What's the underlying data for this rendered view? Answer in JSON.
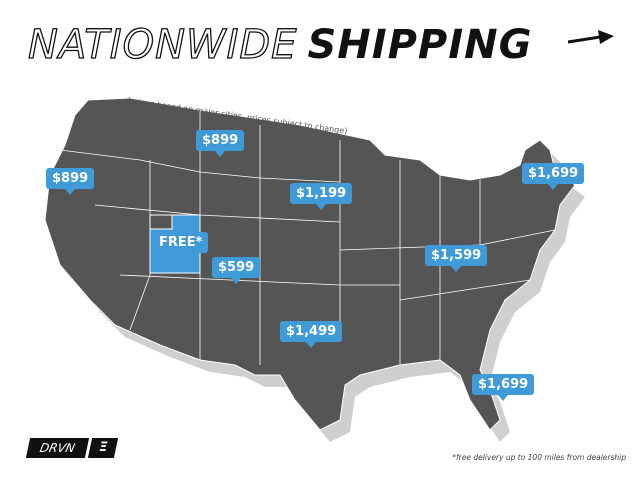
{
  "title": {
    "part1": "NATIONWIDE",
    "part2": "SHIPPING",
    "arrow_icon": "arrow-right-icon"
  },
  "note": "(prices based on major cities, prices subject to change)",
  "colors": {
    "map": "#555555",
    "shadow": "#cfcfcf",
    "highlight": "#3f9ad8",
    "text": "#111111"
  },
  "prices": [
    {
      "region": "Pacific Northwest",
      "label": "$899"
    },
    {
      "region": "Montana",
      "label": "$899"
    },
    {
      "region": "Utah",
      "label": "FREE*"
    },
    {
      "region": "Colorado",
      "label": "$599"
    },
    {
      "region": "Nebraska/South Dakota",
      "label": "$1,199"
    },
    {
      "region": "Oklahoma",
      "label": "$1,499"
    },
    {
      "region": "Ohio Valley",
      "label": "$1,599"
    },
    {
      "region": "Northeast",
      "label": "$1,699"
    },
    {
      "region": "Florida",
      "label": "$1,699"
    }
  ],
  "logo": {
    "text": "DRVN",
    "mark": "Ξ"
  },
  "footnote": "*free delivery up to 100 miles from dealership"
}
